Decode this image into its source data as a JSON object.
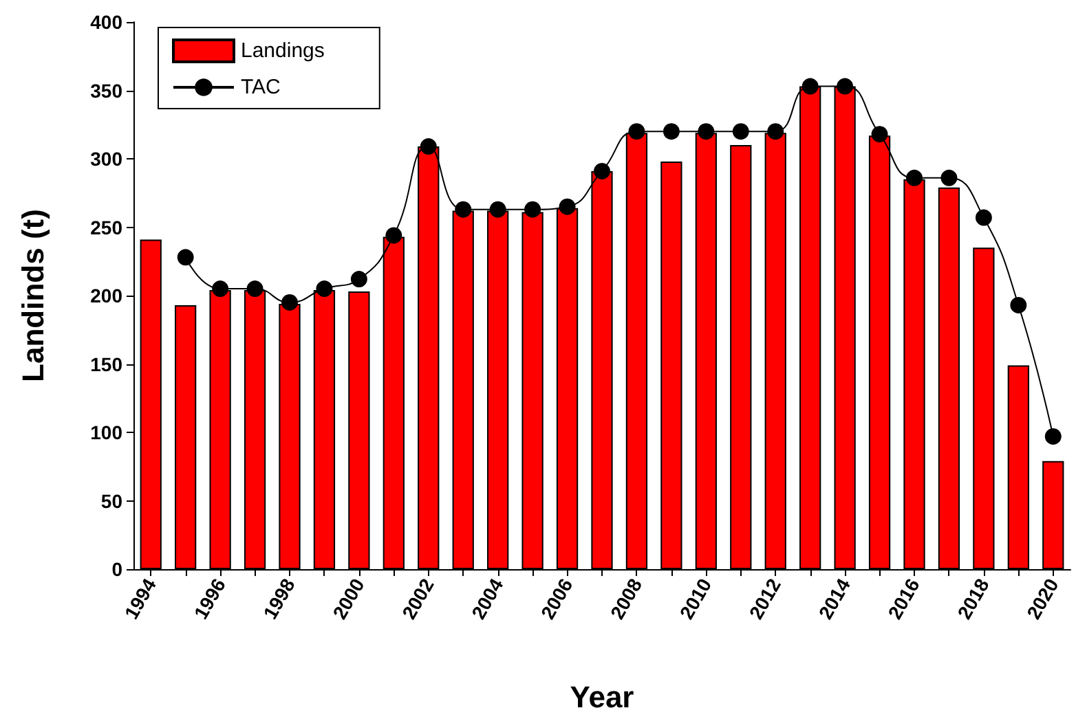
{
  "chart_data": {
    "type": "bar",
    "xlabel": "Year",
    "ylabel": "Landinds (t)",
    "categories": [
      "1994",
      null,
      "1996",
      null,
      "1998",
      null,
      "2000",
      null,
      "2002",
      null,
      "2004",
      null,
      "2006",
      null,
      "2008",
      null,
      "2010",
      null,
      "2012",
      null,
      "2014",
      null,
      "2016",
      null,
      "2018",
      null,
      "2020"
    ],
    "series": [
      {
        "name": "Landings",
        "color": "#ff0000",
        "values": [
          241,
          193,
          204,
          204,
          194,
          204,
          203,
          243,
          309,
          262,
          262,
          261,
          264,
          291,
          319,
          298,
          319,
          310,
          319,
          353,
          353,
          317,
          285,
          279,
          235,
          149,
          79
        ]
      },
      {
        "name": "TAC",
        "type": "line",
        "color": "#000000",
        "marker": "circle",
        "values": [
          null,
          228,
          205,
          205,
          195,
          205,
          212,
          244,
          309,
          263,
          263,
          263,
          265,
          291,
          320,
          320,
          320,
          320,
          320,
          353,
          353,
          318,
          286,
          286,
          257,
          193,
          97
        ]
      }
    ],
    "ylim": [
      0,
      400
    ],
    "yticks": [
      0,
      50,
      100,
      150,
      200,
      250,
      300,
      350,
      400
    ],
    "grid": false,
    "legend": "top left"
  }
}
